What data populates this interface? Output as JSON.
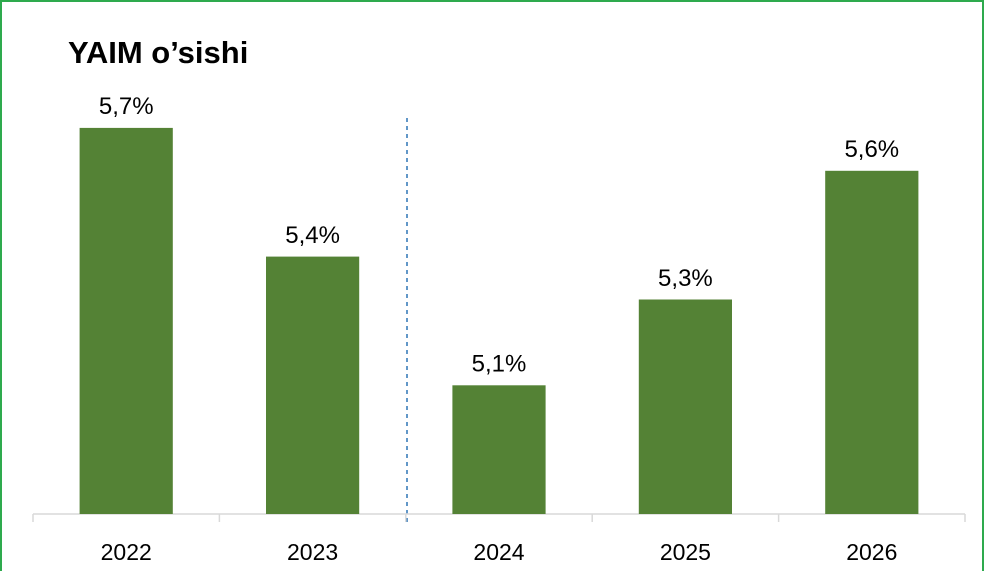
{
  "chart_data": {
    "type": "bar",
    "title": "YAIM o’sishi",
    "categories": [
      "2022",
      "2023",
      "2024",
      "2025",
      "2026"
    ],
    "values": [
      5.7,
      5.4,
      5.1,
      5.3,
      5.6
    ],
    "value_labels": [
      "5,7%",
      "5,4%",
      "5,1%",
      "5,3%",
      "5,6%"
    ],
    "color": "#548235",
    "ylim": [
      4.8,
      5.8
    ]
  }
}
